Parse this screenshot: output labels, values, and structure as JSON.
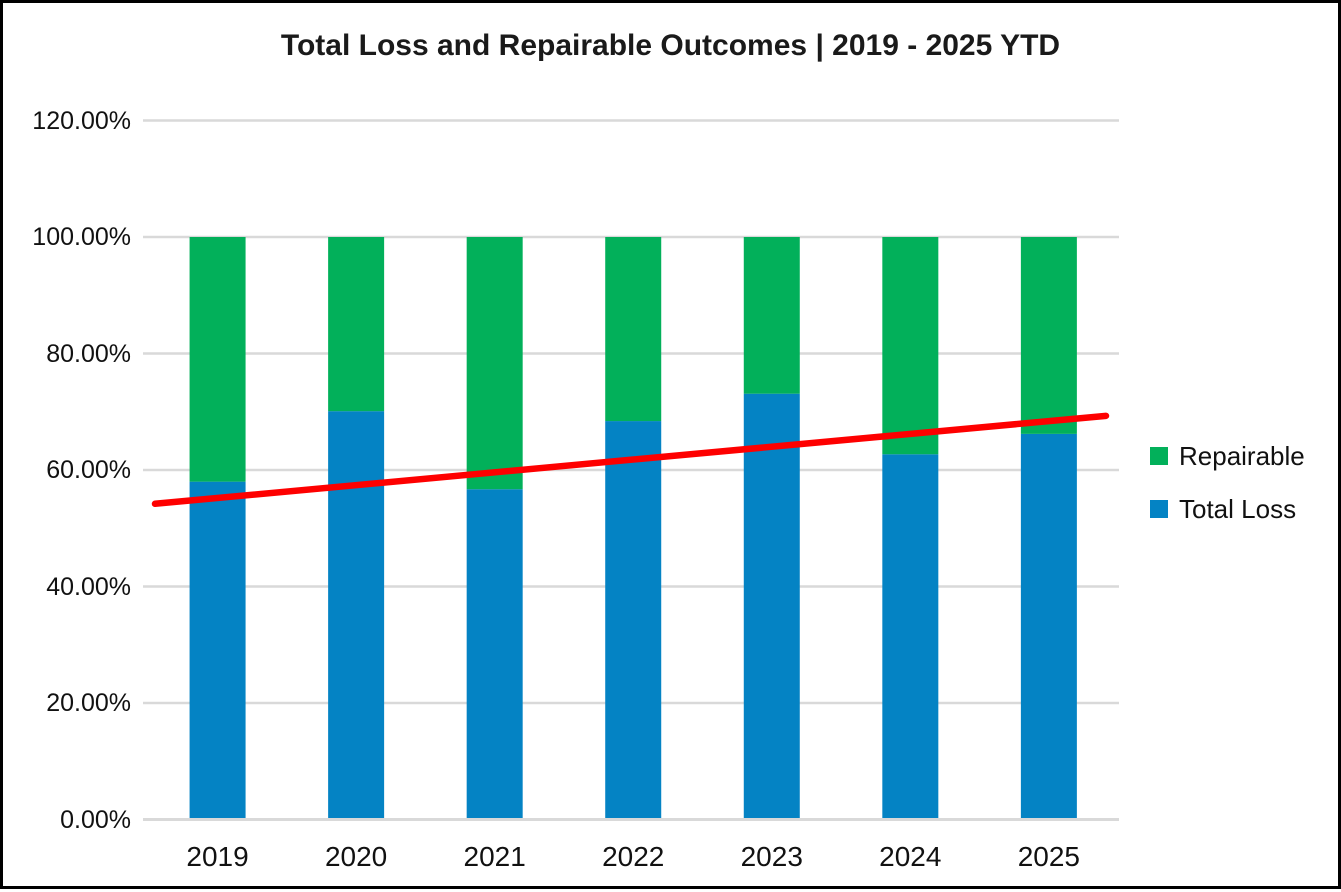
{
  "title": "Total Loss and Repairable Outcomes | 2019 - 2025 YTD",
  "chart_data": {
    "type": "bar",
    "subtype": "stacked-100-percent-columns-with-trendline",
    "title": "Total Loss and Repairable Outcomes | 2019 - 2025 YTD",
    "categories": [
      "2019",
      "2020",
      "2021",
      "2022",
      "2023",
      "2024",
      "2025"
    ],
    "series": [
      {
        "name": "Total Loss",
        "color": "#0483C4",
        "values": [
          58.0,
          70.1,
          56.7,
          68.4,
          73.1,
          62.7,
          66.2
        ]
      },
      {
        "name": "Repairable",
        "color": "#02B05A",
        "values": [
          42.0,
          29.9,
          43.3,
          31.6,
          26.9,
          37.3,
          33.8
        ]
      }
    ],
    "stack_order_bottom_to_top": [
      "Total Loss",
      "Repairable"
    ],
    "trendline": {
      "applies_to": "Total Loss",
      "color": "#FE0000",
      "start_value": 54.2,
      "end_value": 69.3
    },
    "xlabel": "",
    "ylabel": "",
    "ylim": [
      0,
      120
    ],
    "ytick_step": 20,
    "ytick_labels": [
      "0.00%",
      "20.00%",
      "40.00%",
      "60.00%",
      "80.00%",
      "100.00%",
      "120.00%"
    ],
    "grid": true,
    "gridline_color": "#D9D9D9",
    "legend": {
      "position": "right",
      "entries": [
        {
          "label": "Repairable",
          "color": "#02B05A"
        },
        {
          "label": "Total Loss",
          "color": "#0483C4"
        }
      ]
    }
  }
}
